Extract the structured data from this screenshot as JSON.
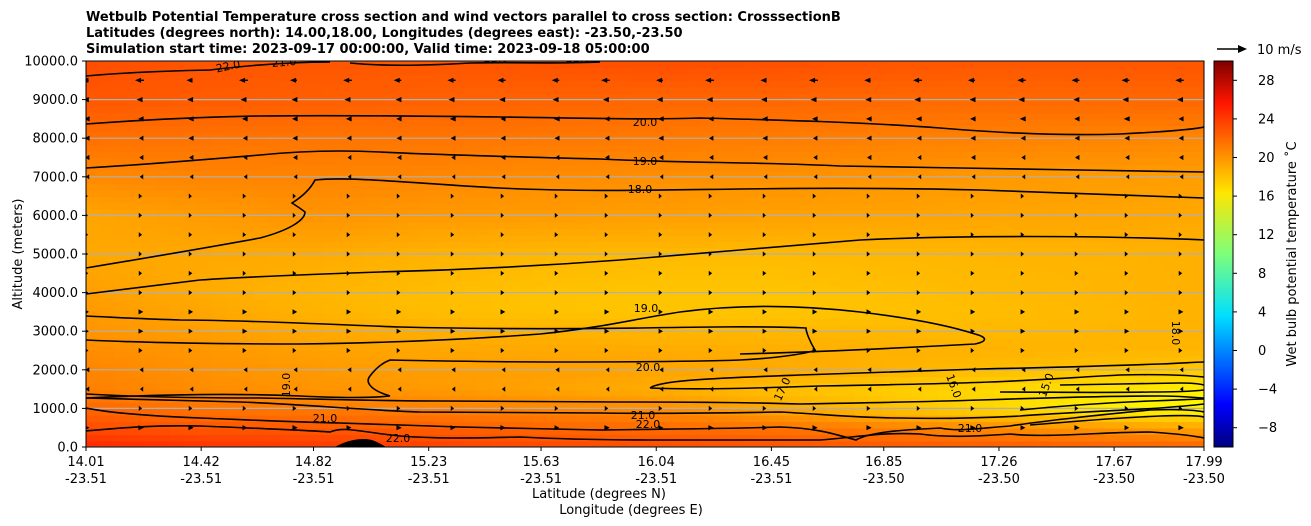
{
  "chart_data": {
    "type": "heatmap",
    "title_lines": [
      "Wetbulb Potential Temperature cross section and wind vectors parallel to cross section: CrosssectionB",
      "Latitudes (degrees north): 14.00,18.00, Longitudes (degrees east): -23.50,-23.50",
      "Simulation start time: 2023-09-17 00:00:00, Valid time: 2023-09-18 05:00:00"
    ],
    "ylabel": "Altitude (meters)",
    "xlabel_lat": "Latitude (degrees N)",
    "xlabel_lon": "Longitude (degrees E)",
    "ylim": [
      0,
      10000
    ],
    "xlim": [
      14.01,
      17.99
    ],
    "y_ticks": [
      0,
      1000,
      2000,
      3000,
      4000,
      5000,
      6000,
      7000,
      8000,
      9000,
      10000
    ],
    "y_tick_labels": [
      "0.0",
      "1000.0",
      "2000.0",
      "3000.0",
      "4000.0",
      "5000.0",
      "6000.0",
      "7000.0",
      "8000.0",
      "9000.0",
      "10000.0"
    ],
    "x_ticks": [
      {
        "lat": "14.01",
        "lon": "-23.51"
      },
      {
        "lat": "14.42",
        "lon": "-23.51"
      },
      {
        "lat": "14.82",
        "lon": "-23.51"
      },
      {
        "lat": "15.23",
        "lon": "-23.51"
      },
      {
        "lat": "15.63",
        "lon": "-23.51"
      },
      {
        "lat": "16.04",
        "lon": "-23.51"
      },
      {
        "lat": "16.45",
        "lon": "-23.51"
      },
      {
        "lat": "16.85",
        "lon": "-23.50"
      },
      {
        "lat": "17.26",
        "lon": "-23.50"
      },
      {
        "lat": "17.67",
        "lon": "-23.50"
      },
      {
        "lat": "17.99",
        "lon": "-23.50"
      }
    ],
    "colorbar": {
      "label": "Wet bulb potential temperature ˚C",
      "range": [
        -10,
        30
      ],
      "ticks": [
        "28",
        "24",
        "20",
        "16",
        "12",
        "8",
        "4",
        "0",
        "−4",
        "−8"
      ],
      "tick_values": [
        28,
        24,
        20,
        16,
        12,
        8,
        4,
        0,
        -4,
        -8
      ],
      "colormap": "jet"
    },
    "wind_key": {
      "label": "10 m/s",
      "speed": 10
    },
    "temperature_field": {
      "description": "approximate wet bulb potential temperature (degC) vs latitude and altitude",
      "latitudes": [
        14.01,
        14.42,
        14.82,
        15.23,
        15.63,
        16.04,
        16.45,
        16.85,
        17.26,
        17.67,
        17.99
      ],
      "altitudes": [
        0,
        500,
        1000,
        1500,
        2000,
        2500,
        3000,
        3500,
        4000,
        5000,
        6000,
        7000,
        8000,
        9000,
        10000
      ],
      "values": [
        [
          23.5,
          23.0,
          22.8,
          22.5,
          22.2,
          22.0,
          21.8,
          21.6,
          21.5,
          21.3,
          21.2
        ],
        [
          22.0,
          21.6,
          21.5,
          21.3,
          21.0,
          20.8,
          20.5,
          20.0,
          19.5,
          19.0,
          18.5
        ],
        [
          21.0,
          20.5,
          20.2,
          20.0,
          19.8,
          19.5,
          18.5,
          17.5,
          16.5,
          15.5,
          15.2
        ],
        [
          20.0,
          19.5,
          19.2,
          19.0,
          18.6,
          18.2,
          17.5,
          17.0,
          16.5,
          16.0,
          15.5
        ],
        [
          19.8,
          19.3,
          19.0,
          18.8,
          18.8,
          18.6,
          18.4,
          18.0,
          17.6,
          17.3,
          17.2
        ],
        [
          19.5,
          19.1,
          18.7,
          18.5,
          18.4,
          18.3,
          18.2,
          18.1,
          18.0,
          17.9,
          17.9
        ],
        [
          19.2,
          18.8,
          18.4,
          18.2,
          18.0,
          17.9,
          17.8,
          17.8,
          17.8,
          17.9,
          18.0
        ],
        [
          19.0,
          18.5,
          18.0,
          17.6,
          17.4,
          17.3,
          17.3,
          17.4,
          17.6,
          17.8,
          18.0
        ],
        [
          18.8,
          18.3,
          17.9,
          17.6,
          17.4,
          17.3,
          17.3,
          17.5,
          17.7,
          17.9,
          18.1
        ],
        [
          18.4,
          18.4,
          18.3,
          18.0,
          17.8,
          17.7,
          17.7,
          17.8,
          17.9,
          18.0,
          18.1
        ],
        [
          18.5,
          18.9,
          19.2,
          19.0,
          18.9,
          18.8,
          18.7,
          18.6,
          18.5,
          18.5,
          18.4
        ],
        [
          19.6,
          19.8,
          19.8,
          19.7,
          19.5,
          19.4,
          19.3,
          19.2,
          19.0,
          18.9,
          18.8
        ],
        [
          20.6,
          20.5,
          20.4,
          20.4,
          20.3,
          20.2,
          20.1,
          20.0,
          19.9,
          19.8,
          19.7
        ],
        [
          21.6,
          21.4,
          21.3,
          21.2,
          21.1,
          21.0,
          21.0,
          20.9,
          20.9,
          20.9,
          21.0
        ],
        [
          22.0,
          21.7,
          21.6,
          21.6,
          21.8,
          22.0,
          21.9,
          21.7,
          21.6,
          21.6,
          21.7
        ]
      ]
    },
    "contour_levels": [
      "22.0",
      "21.0",
      "20.0",
      "19.0",
      "18.0",
      "19.0",
      "20.0",
      "21.0",
      "22.0",
      "17.0",
      "16.0",
      "15.0",
      "18.0",
      "19.0"
    ],
    "wind_rows": [
      {
        "altitude": 9500,
        "u": -4.5
      },
      {
        "altitude": 9000,
        "u": -3.5
      },
      {
        "altitude": 8500,
        "u": -2.5
      },
      {
        "altitude": 8000,
        "u": -2.0
      },
      {
        "altitude": 7500,
        "u": -1.5
      },
      {
        "altitude": 7000,
        "u": -1.0
      },
      {
        "altitude": 6500,
        "u": 0.8
      },
      {
        "altitude": 6000,
        "u": 0.8
      },
      {
        "altitude": 5500,
        "u": 0.9
      },
      {
        "altitude": 5000,
        "u": 0.8
      },
      {
        "altitude": 4500,
        "u": 1.0
      },
      {
        "altitude": 4000,
        "u": 1.0
      },
      {
        "altitude": 3500,
        "u": 1.8
      },
      {
        "altitude": 3000,
        "u": 1.8
      },
      {
        "altitude": 2500,
        "u": 1.2
      },
      {
        "altitude": 2000,
        "u": -1.2
      },
      {
        "altitude": 1500,
        "u": -1.0
      },
      {
        "altitude": 1000,
        "u": 1.0
      },
      {
        "altitude": 500,
        "u": 2.2
      }
    ]
  }
}
